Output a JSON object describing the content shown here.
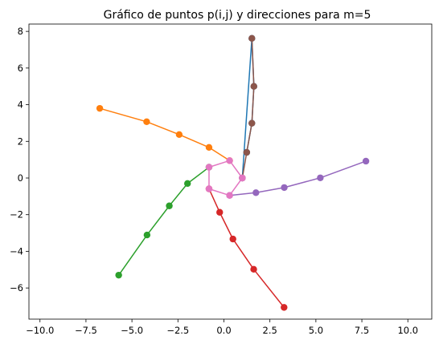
{
  "chart_data": {
    "type": "line",
    "title": "Gráfico de puntos p(i,j) y direcciones para m=5",
    "xlabel": "",
    "ylabel": "",
    "xlim": [
      -10.6,
      11.3
    ],
    "ylim": [
      -7.7,
      8.4
    ],
    "grid": false,
    "xticks": [
      -10.0,
      -7.5,
      -5.0,
      -2.5,
      0.0,
      2.5,
      5.0,
      7.5,
      10.0
    ],
    "xtick_labels": [
      "−10.0",
      "−7.5",
      "−5.0",
      "−2.5",
      "0.0",
      "2.5",
      "5.0",
      "7.5",
      "10.0"
    ],
    "yticks": [
      -6,
      -4,
      -2,
      0,
      2,
      4,
      6,
      8
    ],
    "ytick_labels": [
      "−6",
      "−4",
      "−2",
      "0",
      "2",
      "4",
      "6",
      "8"
    ],
    "series": [
      {
        "color": "#1f77b4",
        "x": [
          1.0,
          1.52,
          1.63,
          1.52,
          1.24
        ],
        "y": [
          0.0,
          7.62,
          5.0,
          2.99,
          1.4
        ]
      },
      {
        "color": "#ff7f0e",
        "x": [
          0.31,
          -0.81,
          -2.43,
          -4.2,
          -6.75
        ],
        "y": [
          0.95,
          1.67,
          2.37,
          3.07,
          3.8
        ]
      },
      {
        "color": "#2ca02c",
        "x": [
          -0.81,
          -1.98,
          -2.97,
          -4.18,
          -5.72
        ],
        "y": [
          0.59,
          -0.3,
          -1.52,
          -3.11,
          -5.3
        ]
      },
      {
        "color": "#d62728",
        "x": [
          -0.81,
          -0.23,
          0.49,
          1.62,
          3.27
        ],
        "y": [
          -0.59,
          -1.87,
          -3.33,
          -4.98,
          -7.06
        ]
      },
      {
        "color": "#9467bd",
        "x": [
          0.31,
          1.74,
          3.28,
          5.24,
          7.72
        ],
        "y": [
          -0.95,
          -0.8,
          -0.52,
          0.01,
          0.92
        ]
      },
      {
        "color": "#8c564b",
        "x": [
          1.0,
          1.24,
          1.52,
          1.63,
          1.52
        ],
        "y": [
          0.0,
          1.4,
          2.99,
          5.0,
          7.62
        ]
      },
      {
        "color": "#e377c2",
        "x": [
          1.0,
          0.31,
          -0.81,
          -0.81,
          0.31,
          1.0
        ],
        "y": [
          0.0,
          0.95,
          0.59,
          -0.59,
          -0.95,
          0.0
        ]
      }
    ]
  }
}
